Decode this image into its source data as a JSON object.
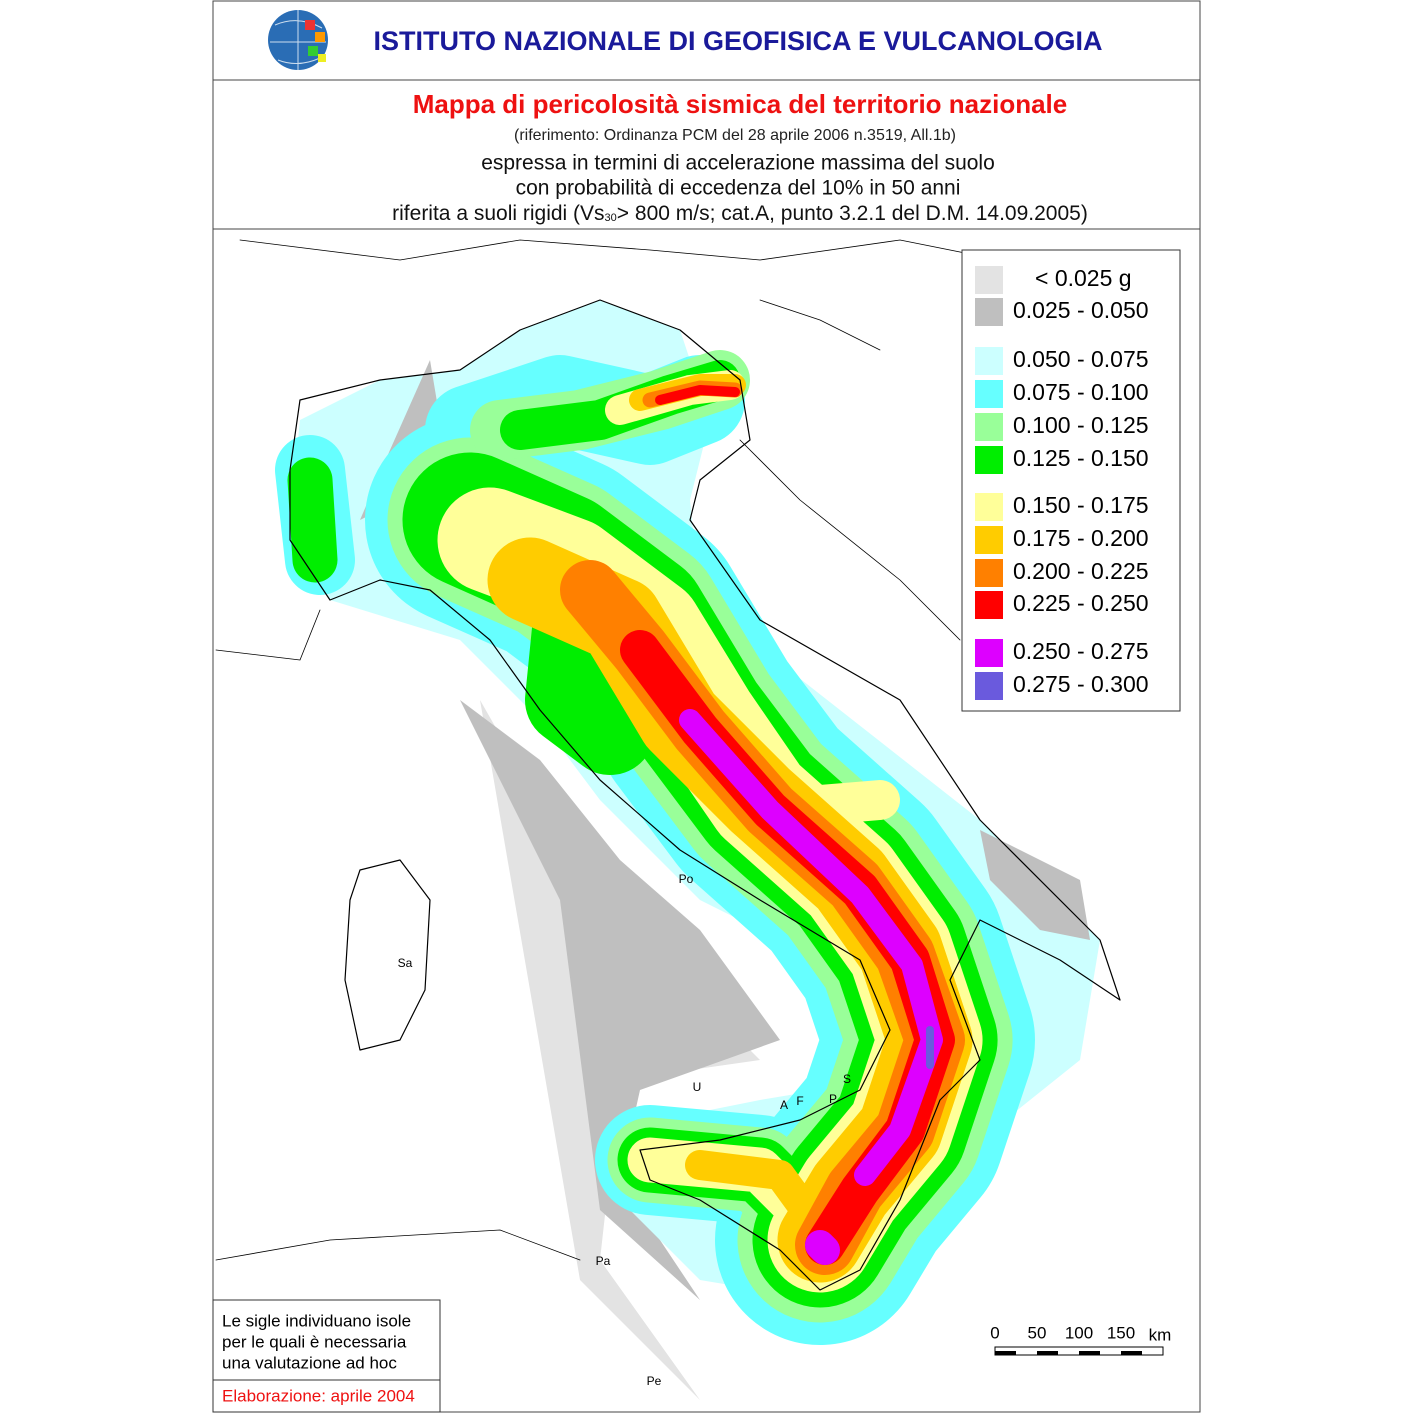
{
  "header": {
    "title": "ISTITUTO NAZIONALE DI GEOFISICA E VULCANOLOGIA"
  },
  "subtitle": {
    "title": "Mappa di pericolosità sismica del territorio nazionale",
    "reference": "(riferimento: Ordinanza PCM del 28 aprile 2006 n.3519, All.1b)",
    "line1": "espressa in termini di accelerazione massima del suolo",
    "line2": "con probabilità di eccedenza del 10% in 50 anni",
    "line3": {
      "pre": "riferita a suoli rigidi (Vs",
      "sub": "30",
      "post": "> 800 m/s; cat.A, punto 3.2.1 del D.M. 14.09.2005)"
    }
  },
  "legend": {
    "entries": [
      {
        "label": "< 0.025 g",
        "color": "#e3e3e3"
      },
      {
        "label": "0.025 - 0.050",
        "color": "#bfbfbf"
      },
      {
        "label": "0.050 - 0.075",
        "color": "#ccffff"
      },
      {
        "label": "0.075 - 0.100",
        "color": "#66ffff"
      },
      {
        "label": "0.100 - 0.125",
        "color": "#99ff99"
      },
      {
        "label": "0.125 - 0.150",
        "color": "#00ee00"
      },
      {
        "label": "0.150 - 0.175",
        "color": "#ffff99"
      },
      {
        "label": "0.175 - 0.200",
        "color": "#ffcc00"
      },
      {
        "label": "0.200 - 0.225",
        "color": "#ff8000"
      },
      {
        "label": "0.225 - 0.250",
        "color": "#ff0000"
      },
      {
        "label": "0.250 - 0.275",
        "color": "#dd00ff"
      },
      {
        "label": "0.275 - 0.300",
        "color": "#6a5add"
      }
    ]
  },
  "islands": [
    "Po",
    "Sa",
    "U",
    "A",
    "F",
    "P",
    "S",
    "Pa",
    "Pe"
  ],
  "note": {
    "lines": [
      "Le sigle individuano isole",
      "per le quali è necessaria",
      "una valutazione ad hoc"
    ],
    "date": "Elaborazione: aprile 2004"
  },
  "scale": {
    "ticks": [
      "0",
      "50",
      "100",
      "150"
    ],
    "unit": "km"
  }
}
